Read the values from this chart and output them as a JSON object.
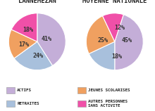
{
  "title_left": "LANNEMEZAN",
  "title_right": "MOYENNE NATIONALE",
  "lannemezan": {
    "values": [
      41,
      24,
      17,
      18
    ],
    "colors": [
      "#c4aed8",
      "#a8c0dc",
      "#f0a060",
      "#f050a8"
    ],
    "labels": [
      "41%",
      "24%",
      "17%",
      "18%"
    ],
    "startangle": 90
  },
  "nationale": {
    "values": [
      45,
      18,
      25,
      12
    ],
    "colors": [
      "#c4aed8",
      "#a8c0dc",
      "#f0a060",
      "#f050a8"
    ],
    "labels": [
      "45%",
      "18%",
      "25%",
      "12%"
    ],
    "startangle": 72
  },
  "legend": [
    {
      "label": "ACTIFS",
      "color": "#c4aed8"
    },
    {
      "label": "RETRAITES",
      "color": "#a8c0dc"
    },
    {
      "label": "JEUNES SCOLARISES",
      "color": "#f0a060"
    },
    {
      "label": "AUTRES PERSONNES\nSANS ACTIVITE",
      "color": "#f050a8"
    }
  ],
  "background": "#ffffff",
  "title_fontsize": 6.5,
  "label_fontsize": 6.0
}
